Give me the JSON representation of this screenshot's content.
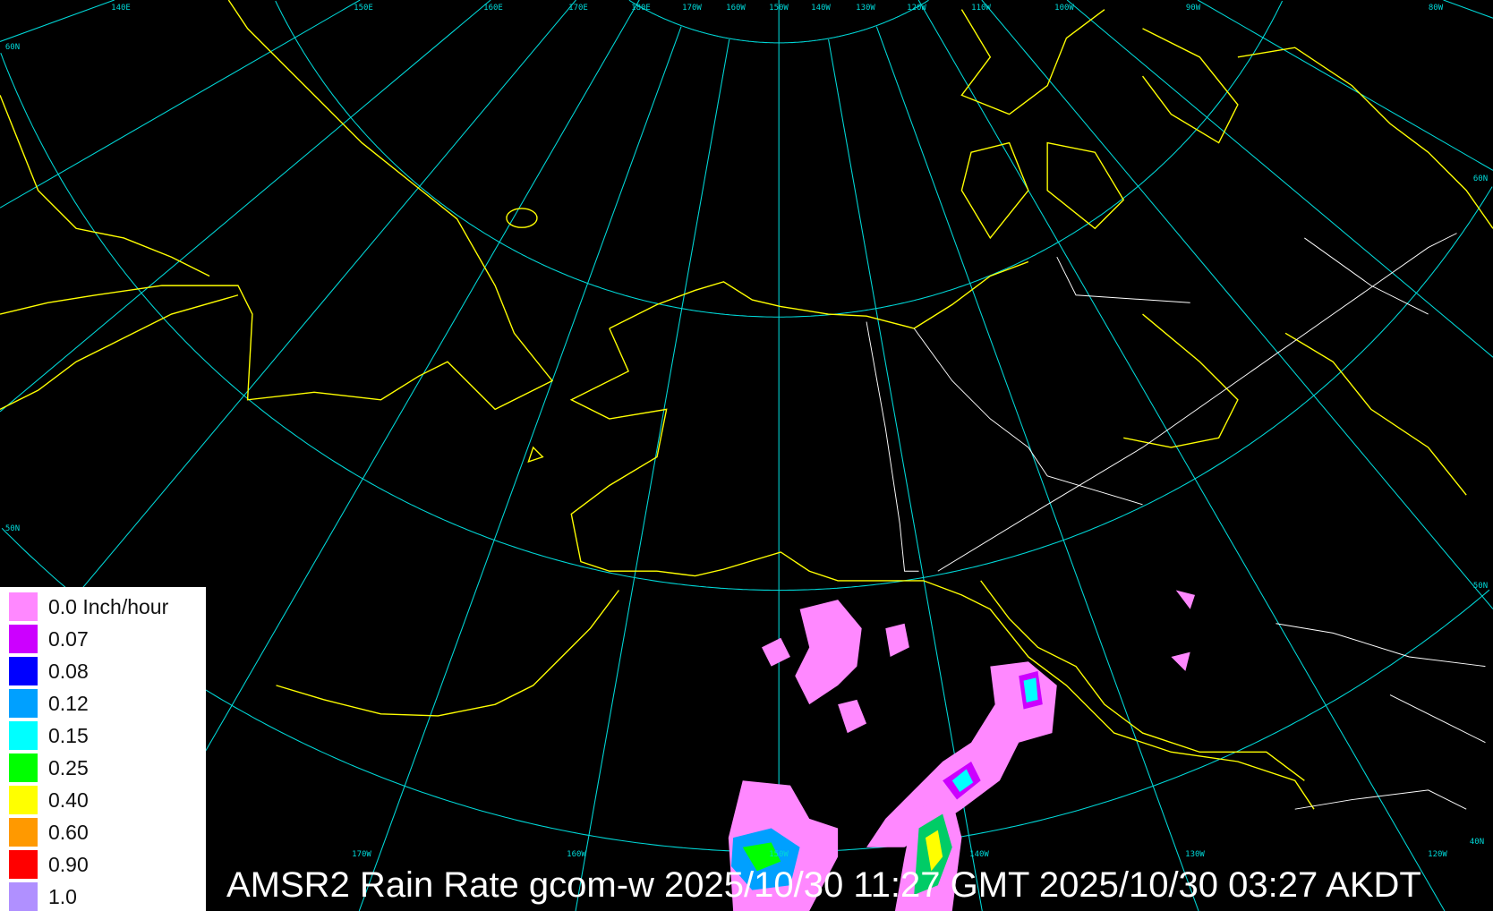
{
  "title": "AMSR2 Rain Rate gcom-w 2025/10/30 11:27 GMT 2025/10/30 03:27 AKDT",
  "colors": {
    "background": "#000000",
    "graticule": "#00d8d8",
    "coastline": "#ffff00",
    "borders": "#ffffff",
    "legend_bg": "#ffffff"
  },
  "graticule_labels": {
    "top": [
      "140E",
      "150E",
      "160E",
      "170E",
      "180E",
      "170W",
      "160W",
      "150W",
      "140W",
      "130W",
      "120W",
      "110W",
      "100W",
      "90W",
      "80W"
    ],
    "bottom": [
      "170W",
      "160W",
      "150W",
      "140W",
      "130W",
      "120W",
      "40N"
    ],
    "left": [
      "60N",
      "50N"
    ],
    "right": [
      "60N",
      "50N"
    ]
  },
  "legend": {
    "items": [
      {
        "label": "0.0 Inch/hour",
        "color": "#ff88ff"
      },
      {
        "label": "0.07",
        "color": "#cc00ff"
      },
      {
        "label": "0.08",
        "color": "#0000ff"
      },
      {
        "label": "0.12",
        "color": "#00a0ff"
      },
      {
        "label": "0.15",
        "color": "#00ffff"
      },
      {
        "label": "0.25",
        "color": "#00ff00"
      },
      {
        "label": "0.40",
        "color": "#ffff00"
      },
      {
        "label": "0.60",
        "color": "#ff9900"
      },
      {
        "label": "0.90",
        "color": "#ff0000"
      },
      {
        "label": "1.0",
        "color": "#b090ff"
      }
    ]
  }
}
